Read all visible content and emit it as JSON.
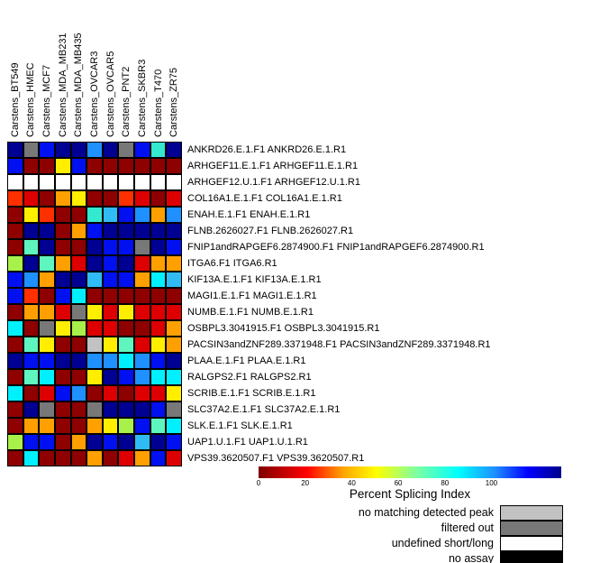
{
  "chart_data": {
    "type": "heatmap",
    "title": "",
    "columns": [
      "Carstens_BT549",
      "Carstens_HMEC",
      "Carstens_MCF7",
      "Carstens_MDA_MB231",
      "Carstens_MDA_MB435",
      "Carstens_OVCAR3",
      "Carstens_OVCAR5",
      "Carstens_PNT2",
      "Carstens_SKBR3",
      "Carstens_T470",
      "Carstens_ZR75"
    ],
    "rows": [
      "ANKRD26.E.1.F1  ANKRD26.E.1.R1",
      "ARHGEF11.E.1.F1  ARHGEF11.E.1.R1",
      "ARHGEF12.U.1.F1  ARHGEF12.U.1.R1",
      "COL16A1.E.1.F1  COL16A1.E.1.R1",
      "ENAH.E.1.F1  ENAH.E.1.R1",
      "FLNB.2626027.F1  FLNB.2626027.R1",
      "FNIP1andRAPGEF6.2874900.F1  FNIP1andRAPGEF6.2874900.R1",
      "ITGA6.F1  ITGA6.R1",
      "KIF13A.E.1.F1  KIF13A.E.1.R1",
      "MAGI1.E.1.F1  MAGI1.E.1.R1",
      "NUMB.E.1.F1  NUMB.E.1.R1",
      "OSBPL3.3041915.F1  OSBPL3.3041915.R1",
      "PACSIN3andZNF289.3371948.F1  PACSIN3andZNF289.3371948.R1",
      "PLAA.E.1.F1  PLAA.E.1.R1",
      "RALGPS2.F1  RALGPS2.R1",
      "SCRIB.E.1.F1  SCRIB.E.1.R1",
      "SLC37A2.E.1.F1  SLC37A2.E.1.R1",
      "SLK.E.1.F1  SLK.E.1.R1",
      "UAP1.U.1.F1  UAP1.U.1.R1",
      "VPS39.3620507.F1  VPS39.3620507.R1"
    ],
    "cells": [
      [
        "navy",
        "gray",
        "blue",
        "navy",
        "navy",
        "dodgerblue",
        "navy",
        "gray",
        "blue",
        "turquoise",
        "navy"
      ],
      [
        "blue",
        "darkred",
        "darkred",
        "yellow",
        "blue",
        "darkred",
        "darkred",
        "darkred",
        "darkred",
        "darkred",
        "darkred"
      ],
      [
        "white",
        "white",
        "white",
        "white",
        "white",
        "white",
        "white",
        "white",
        "white",
        "white",
        "white"
      ],
      [
        "orangered",
        "red",
        "darkred",
        "orange",
        "yellow",
        "darkred",
        "darkred",
        "orangered",
        "red",
        "darkred",
        "red"
      ],
      [
        "darkred",
        "yellow",
        "orangered",
        "darkred",
        "darkred",
        "turquoise",
        "skyblue",
        "blue",
        "dodgerblue",
        "orange",
        "dodgerblue"
      ],
      [
        "darkred",
        "navy",
        "navy",
        "darkred",
        "orange",
        "blue",
        "navy",
        "navy",
        "navy",
        "navy",
        "navy"
      ],
      [
        "darkred",
        "aquamarine",
        "navy",
        "darkred",
        "darkred",
        "navy",
        "blue",
        "blue",
        "gray",
        "navy",
        "blue"
      ],
      [
        "greenyellow",
        "navy",
        "aquamarine",
        "orange",
        "red",
        "navy",
        "blue",
        "navy",
        "red",
        "orange",
        "orange"
      ],
      [
        "blue",
        "dodgerblue",
        "orange",
        "navy",
        "navy",
        "skyblue",
        "blue",
        "blue",
        "orange",
        "cyan",
        "skyblue"
      ],
      [
        "blue",
        "orangered",
        "darkred",
        "blue",
        "cyan",
        "darkred",
        "darkred",
        "darkred",
        "darkred",
        "darkred",
        "darkred"
      ],
      [
        "darkred",
        "orange",
        "orange",
        "red",
        "gray",
        "yellow",
        "red",
        "yellow",
        "red",
        "red",
        "red"
      ],
      [
        "cyan",
        "darkred",
        "gray",
        "yellow",
        "greenyellow",
        "red",
        "red",
        "darkred",
        "darkred",
        "red",
        "orange"
      ],
      [
        "darkred",
        "aquamarine",
        "yellow",
        "darkred",
        "darkred",
        "lightgray",
        "yellow",
        "aquamarine",
        "red",
        "yellow",
        "orange"
      ],
      [
        "navy",
        "blue",
        "blue",
        "navy",
        "navy",
        "dodgerblue",
        "dodgerblue",
        "cyan",
        "dodgerblue",
        "blue",
        "navy"
      ],
      [
        "darkred",
        "aquamarine",
        "cyan",
        "darkred",
        "darkred",
        "yellow",
        "navy",
        "blue",
        "dodgerblue",
        "cyan",
        "cyan"
      ],
      [
        "cyan",
        "darkred",
        "red",
        "blue",
        "dodgerblue",
        "darkred",
        "red",
        "darkred",
        "red",
        "red",
        "yellow"
      ],
      [
        "darkred",
        "navy",
        "gray",
        "darkred",
        "darkred",
        "gray",
        "navy",
        "navy",
        "navy",
        "blue",
        "gray"
      ],
      [
        "darkred",
        "orange",
        "orange",
        "darkred",
        "darkred",
        "orange",
        "yellow",
        "greenyellow",
        "blue",
        "aquamarine",
        "cyan"
      ],
      [
        "greenyellow",
        "blue",
        "blue",
        "darkred",
        "orange",
        "navy",
        "blue",
        "navy",
        "skyblue",
        "navy",
        "blue"
      ],
      [
        "darkred",
        "cyan",
        "darkred",
        "darkred",
        "darkred",
        "orange",
        "darkred",
        "red",
        "orange",
        "blue",
        "red"
      ]
    ],
    "palette": {
      "darkred": "#8F0000",
      "red": "#DE0000",
      "orangered": "#FF3000",
      "orange": "#FFA000",
      "yellow": "#FFEE00",
      "greenyellow": "#A8F04A",
      "aquamarine": "#5FF5BE",
      "turquoise": "#35E8D0",
      "cyan": "#00F0FF",
      "skyblue": "#30BBF5",
      "dodgerblue": "#1E90FF",
      "blue": "#0010F0",
      "navy": "#000092",
      "gray": "#787878",
      "lightgray": "#C2C2C2",
      "white": "#FFFFFF",
      "black": "#000000"
    },
    "colorbar": {
      "title": "Percent Splicing Index",
      "tick_values": [
        0,
        20,
        40,
        60,
        80,
        100
      ],
      "axis_max": 130,
      "gradient": [
        [
          "#7F0000",
          0
        ],
        [
          "#FF0000",
          16
        ],
        [
          "#FFA500",
          28
        ],
        [
          "#FFFF00",
          39
        ],
        [
          "#7FFF9F",
          52
        ],
        [
          "#00FFFF",
          66
        ],
        [
          "#1E90FF",
          78
        ],
        [
          "#0000FF",
          89
        ],
        [
          "#00008B",
          100
        ]
      ]
    },
    "legend": {
      "items": [
        {
          "label": "no matching detected peak",
          "color": "#C2C2C2"
        },
        {
          "label": "filtered out",
          "color": "#787878"
        },
        {
          "label": "undefined short/long",
          "color": "#FFFFFF"
        },
        {
          "label": "no assay",
          "color": "#000000"
        }
      ]
    }
  }
}
